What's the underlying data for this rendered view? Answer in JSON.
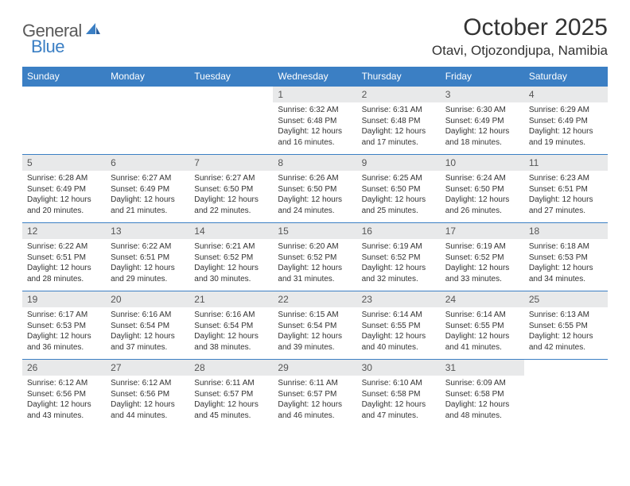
{
  "logo": {
    "text1": "General",
    "text2": "Blue"
  },
  "title": "October 2025",
  "location": "Otavi, Otjozondjupa, Namibia",
  "header_bg": "#3b7fc4",
  "daynum_bg": "#e8e9ea",
  "border_color": "#3b7fc4",
  "dayheaders": [
    "Sunday",
    "Monday",
    "Tuesday",
    "Wednesday",
    "Thursday",
    "Friday",
    "Saturday"
  ],
  "weeks": [
    [
      null,
      null,
      null,
      {
        "n": "1",
        "sunrise": "6:32 AM",
        "sunset": "6:48 PM",
        "dl": "12 hours and 16 minutes."
      },
      {
        "n": "2",
        "sunrise": "6:31 AM",
        "sunset": "6:48 PM",
        "dl": "12 hours and 17 minutes."
      },
      {
        "n": "3",
        "sunrise": "6:30 AM",
        "sunset": "6:49 PM",
        "dl": "12 hours and 18 minutes."
      },
      {
        "n": "4",
        "sunrise": "6:29 AM",
        "sunset": "6:49 PM",
        "dl": "12 hours and 19 minutes."
      }
    ],
    [
      {
        "n": "5",
        "sunrise": "6:28 AM",
        "sunset": "6:49 PM",
        "dl": "12 hours and 20 minutes."
      },
      {
        "n": "6",
        "sunrise": "6:27 AM",
        "sunset": "6:49 PM",
        "dl": "12 hours and 21 minutes."
      },
      {
        "n": "7",
        "sunrise": "6:27 AM",
        "sunset": "6:50 PM",
        "dl": "12 hours and 22 minutes."
      },
      {
        "n": "8",
        "sunrise": "6:26 AM",
        "sunset": "6:50 PM",
        "dl": "12 hours and 24 minutes."
      },
      {
        "n": "9",
        "sunrise": "6:25 AM",
        "sunset": "6:50 PM",
        "dl": "12 hours and 25 minutes."
      },
      {
        "n": "10",
        "sunrise": "6:24 AM",
        "sunset": "6:50 PM",
        "dl": "12 hours and 26 minutes."
      },
      {
        "n": "11",
        "sunrise": "6:23 AM",
        "sunset": "6:51 PM",
        "dl": "12 hours and 27 minutes."
      }
    ],
    [
      {
        "n": "12",
        "sunrise": "6:22 AM",
        "sunset": "6:51 PM",
        "dl": "12 hours and 28 minutes."
      },
      {
        "n": "13",
        "sunrise": "6:22 AM",
        "sunset": "6:51 PM",
        "dl": "12 hours and 29 minutes."
      },
      {
        "n": "14",
        "sunrise": "6:21 AM",
        "sunset": "6:52 PM",
        "dl": "12 hours and 30 minutes."
      },
      {
        "n": "15",
        "sunrise": "6:20 AM",
        "sunset": "6:52 PM",
        "dl": "12 hours and 31 minutes."
      },
      {
        "n": "16",
        "sunrise": "6:19 AM",
        "sunset": "6:52 PM",
        "dl": "12 hours and 32 minutes."
      },
      {
        "n": "17",
        "sunrise": "6:19 AM",
        "sunset": "6:52 PM",
        "dl": "12 hours and 33 minutes."
      },
      {
        "n": "18",
        "sunrise": "6:18 AM",
        "sunset": "6:53 PM",
        "dl": "12 hours and 34 minutes."
      }
    ],
    [
      {
        "n": "19",
        "sunrise": "6:17 AM",
        "sunset": "6:53 PM",
        "dl": "12 hours and 36 minutes."
      },
      {
        "n": "20",
        "sunrise": "6:16 AM",
        "sunset": "6:54 PM",
        "dl": "12 hours and 37 minutes."
      },
      {
        "n": "21",
        "sunrise": "6:16 AM",
        "sunset": "6:54 PM",
        "dl": "12 hours and 38 minutes."
      },
      {
        "n": "22",
        "sunrise": "6:15 AM",
        "sunset": "6:54 PM",
        "dl": "12 hours and 39 minutes."
      },
      {
        "n": "23",
        "sunrise": "6:14 AM",
        "sunset": "6:55 PM",
        "dl": "12 hours and 40 minutes."
      },
      {
        "n": "24",
        "sunrise": "6:14 AM",
        "sunset": "6:55 PM",
        "dl": "12 hours and 41 minutes."
      },
      {
        "n": "25",
        "sunrise": "6:13 AM",
        "sunset": "6:55 PM",
        "dl": "12 hours and 42 minutes."
      }
    ],
    [
      {
        "n": "26",
        "sunrise": "6:12 AM",
        "sunset": "6:56 PM",
        "dl": "12 hours and 43 minutes."
      },
      {
        "n": "27",
        "sunrise": "6:12 AM",
        "sunset": "6:56 PM",
        "dl": "12 hours and 44 minutes."
      },
      {
        "n": "28",
        "sunrise": "6:11 AM",
        "sunset": "6:57 PM",
        "dl": "12 hours and 45 minutes."
      },
      {
        "n": "29",
        "sunrise": "6:11 AM",
        "sunset": "6:57 PM",
        "dl": "12 hours and 46 minutes."
      },
      {
        "n": "30",
        "sunrise": "6:10 AM",
        "sunset": "6:58 PM",
        "dl": "12 hours and 47 minutes."
      },
      {
        "n": "31",
        "sunrise": "6:09 AM",
        "sunset": "6:58 PM",
        "dl": "12 hours and 48 minutes."
      },
      null
    ]
  ]
}
